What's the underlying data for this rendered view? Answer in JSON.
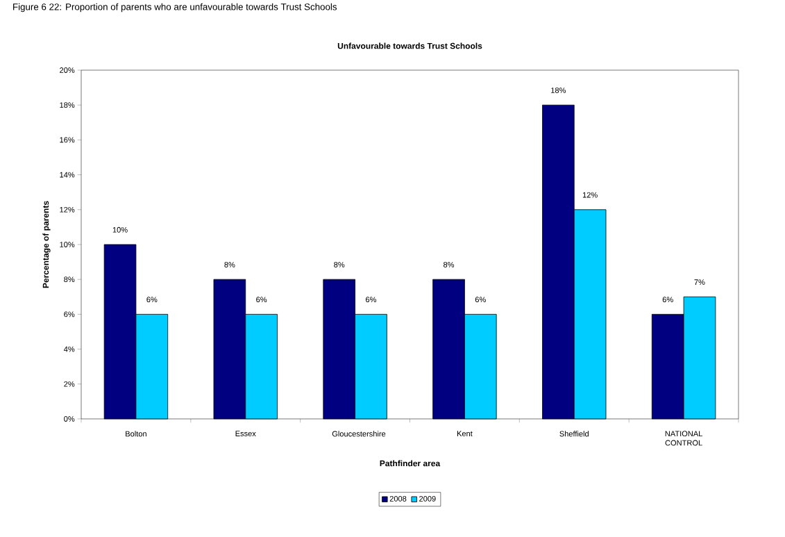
{
  "chart_data": {
    "type": "bar",
    "title": "Unfavourable towards Trust Schools",
    "xlabel": "Pathfinder area",
    "ylabel": "Percentage of parents",
    "annotations": [
      "Figure 6 22: Proportion of parents who are unfavourable towards Trust Schools"
    ],
    "categories": [
      "Bolton",
      "Essex",
      "Gloucestershire",
      "Kent",
      "Sheffield",
      "NATIONAL CONTROL"
    ],
    "series": [
      {
        "name": "2008",
        "color": "#000080",
        "values": [
          10,
          8,
          8,
          8,
          18,
          6
        ],
        "value_labels": [
          "10%",
          "8%",
          "8%",
          "8%",
          "18%",
          "6%"
        ]
      },
      {
        "name": "2009",
        "color": "#00ccff",
        "values": [
          6,
          6,
          6,
          6,
          12,
          7
        ],
        "value_labels": [
          "6%",
          "6%",
          "6%",
          "6%",
          "12%",
          "7%"
        ]
      }
    ],
    "ylim": [
      0,
      20
    ],
    "yticks": [
      {
        "value": 0,
        "label": "0%"
      },
      {
        "value": 2,
        "label": "2%"
      },
      {
        "value": 4,
        "label": "4%"
      },
      {
        "value": 6,
        "label": "6%"
      },
      {
        "value": 8,
        "label": "8%"
      },
      {
        "value": 10,
        "label": "10%"
      },
      {
        "value": 12,
        "label": "12%"
      },
      {
        "value": 14,
        "label": "14%"
      },
      {
        "value": 16,
        "label": "16%"
      },
      {
        "value": 18,
        "label": "18%"
      },
      {
        "value": 20,
        "label": "20%"
      }
    ],
    "grid": false,
    "legend": "bottom"
  }
}
